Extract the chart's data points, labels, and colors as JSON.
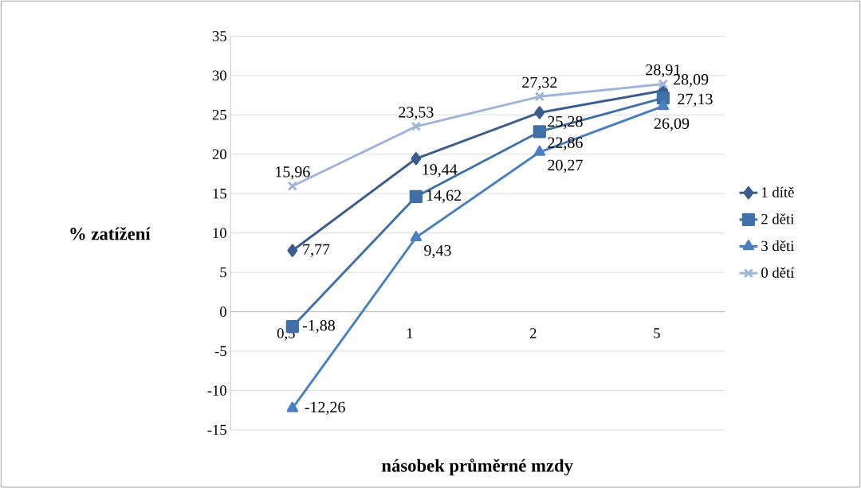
{
  "chart_data": {
    "type": "line",
    "xlabel": "násobek průměrné mzdy",
    "ylabel": "% zatížení",
    "categories": [
      "0,5",
      "1",
      "2",
      "5"
    ],
    "series": [
      {
        "name": "1 dítě",
        "color": "#3b5d8e",
        "marker": "diamond",
        "values": [
          7.77,
          19.44,
          25.28,
          28.09
        ],
        "value_labels": [
          "7,77",
          "19,44",
          "25,28",
          "28,09"
        ]
      },
      {
        "name": "2 děti",
        "color": "#4070a8",
        "marker": "square",
        "values": [
          -1.88,
          14.62,
          22.86,
          27.13
        ],
        "value_labels": [
          "-1,88",
          "14,62",
          "22,86",
          "27,13"
        ]
      },
      {
        "name": "3 děti",
        "color": "#4a80c2",
        "marker": "triangle",
        "values": [
          -12.26,
          9.43,
          20.27,
          26.09
        ],
        "value_labels": [
          "-12,26",
          "9,43",
          "20,27",
          "26,09"
        ]
      },
      {
        "name": "0 dětí",
        "color": "#9fb4d8",
        "marker": "cross",
        "values": [
          15.96,
          23.53,
          27.32,
          28.91
        ],
        "value_labels": [
          "15,96",
          "23,53",
          "27,32",
          "28,91"
        ]
      }
    ],
    "ylim": [
      -15,
      35
    ],
    "yticks": [
      -15,
      -10,
      -5,
      0,
      5,
      10,
      15,
      20,
      25,
      30,
      35
    ],
    "grid": "y",
    "legend": "right",
    "line_style": "solid"
  }
}
